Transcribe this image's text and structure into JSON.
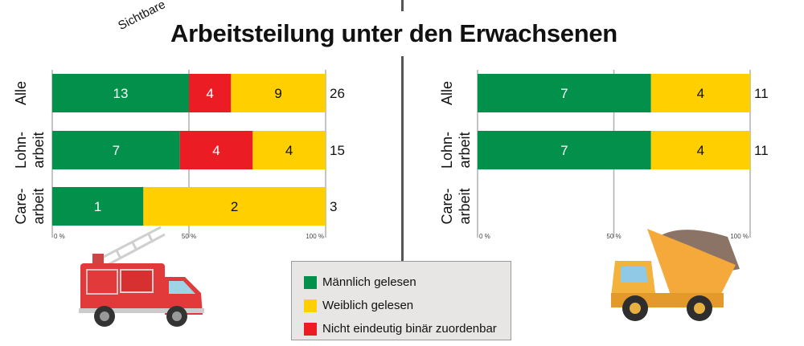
{
  "title": "Arbeitsteilung unter den Erwachsenen",
  "title_prefix": "Sichtbare",
  "colors": {
    "male": "#02904a",
    "female": "#ffcf00",
    "nonbinary": "#ec1c24"
  },
  "legend": [
    {
      "key": "male",
      "label": "Männlich gelesen"
    },
    {
      "key": "female",
      "label": "Weiblich gelesen"
    },
    {
      "key": "nonbinary",
      "label": "Nicht eindeutig binär zuordenbar"
    }
  ],
  "chart_data": [
    {
      "type": "bar",
      "orientation": "horizontal",
      "stacked": "percent",
      "categories": [
        [
          "Alle"
        ],
        [
          "Lohn-",
          "arbeit"
        ],
        [
          "Care-",
          "arbeit"
        ]
      ],
      "series": [
        {
          "key": "male",
          "values": [
            13,
            7,
            1
          ]
        },
        {
          "key": "nonbinary",
          "values": [
            4,
            4,
            0
          ]
        },
        {
          "key": "female",
          "values": [
            9,
            4,
            2
          ]
        }
      ],
      "totals": [
        "26",
        "15",
        "3"
      ],
      "xticks": [
        "0 %",
        "50 %",
        "100 %"
      ],
      "xlim": [
        0,
        100
      ],
      "grid": true
    },
    {
      "type": "bar",
      "orientation": "horizontal",
      "stacked": "percent",
      "categories": [
        [
          "Alle"
        ],
        [
          "Lohn-",
          "arbeit"
        ],
        [
          "Care-",
          "arbeit"
        ]
      ],
      "series": [
        {
          "key": "male",
          "values": [
            7,
            7,
            0
          ]
        },
        {
          "key": "nonbinary",
          "values": [
            0,
            0,
            0
          ]
        },
        {
          "key": "female",
          "values": [
            4,
            4,
            0
          ]
        }
      ],
      "totals": [
        "11",
        "11",
        ""
      ],
      "xticks": [
        "0 %",
        "50 %",
        "100 %"
      ],
      "xlim": [
        0,
        100
      ],
      "grid": true
    }
  ]
}
